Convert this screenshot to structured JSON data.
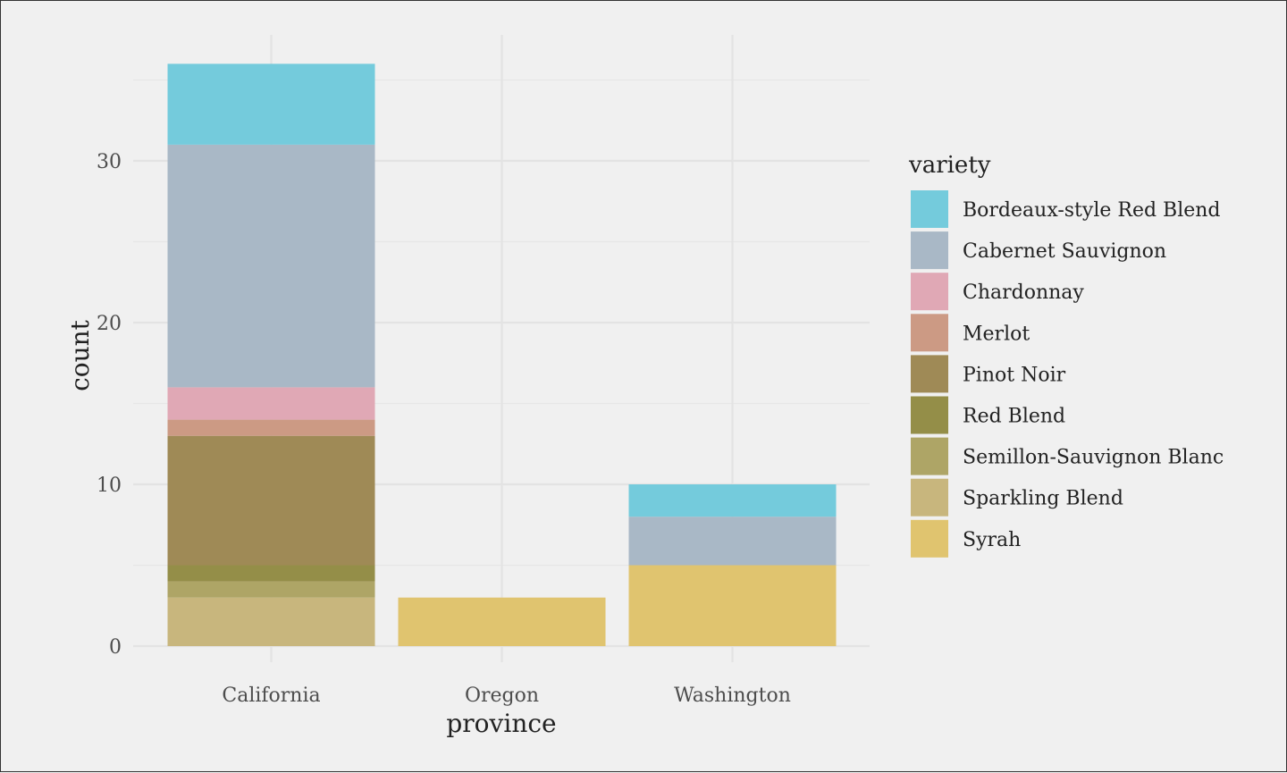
{
  "chart_data": {
    "type": "bar",
    "stacked": true,
    "title": "",
    "xlabel": "province",
    "ylabel": "count",
    "categories": [
      "California",
      "Oregon",
      "Washington"
    ],
    "ylim": [
      0,
      36
    ],
    "yticks": [
      0,
      10,
      20,
      30
    ],
    "grid": true,
    "legend_position": "right",
    "legend_title": "variety",
    "series": [
      {
        "name": "Bordeaux-style Red Blend",
        "color": "#74cbdc",
        "values": [
          5,
          0,
          2
        ]
      },
      {
        "name": "Cabernet Sauvignon",
        "color": "#a9b8c6",
        "values": [
          15,
          0,
          3
        ]
      },
      {
        "name": "Chardonnay",
        "color": "#e0a8b5",
        "values": [
          2,
          0,
          0
        ]
      },
      {
        "name": "Merlot",
        "color": "#cc9a84",
        "values": [
          1,
          0,
          0
        ]
      },
      {
        "name": "Pinot Noir",
        "color": "#9f8a56",
        "values": [
          8,
          0,
          0
        ]
      },
      {
        "name": "Red Blend",
        "color": "#948e48",
        "values": [
          1,
          0,
          0
        ]
      },
      {
        "name": "Semillon-Sauvignon Blanc",
        "color": "#aea566",
        "values": [
          1,
          0,
          0
        ]
      },
      {
        "name": "Sparkling Blend",
        "color": "#c8b67d",
        "values": [
          3,
          0,
          0
        ]
      },
      {
        "name": "Syrah",
        "color": "#e0c46f",
        "values": [
          0,
          3,
          5
        ]
      }
    ]
  }
}
